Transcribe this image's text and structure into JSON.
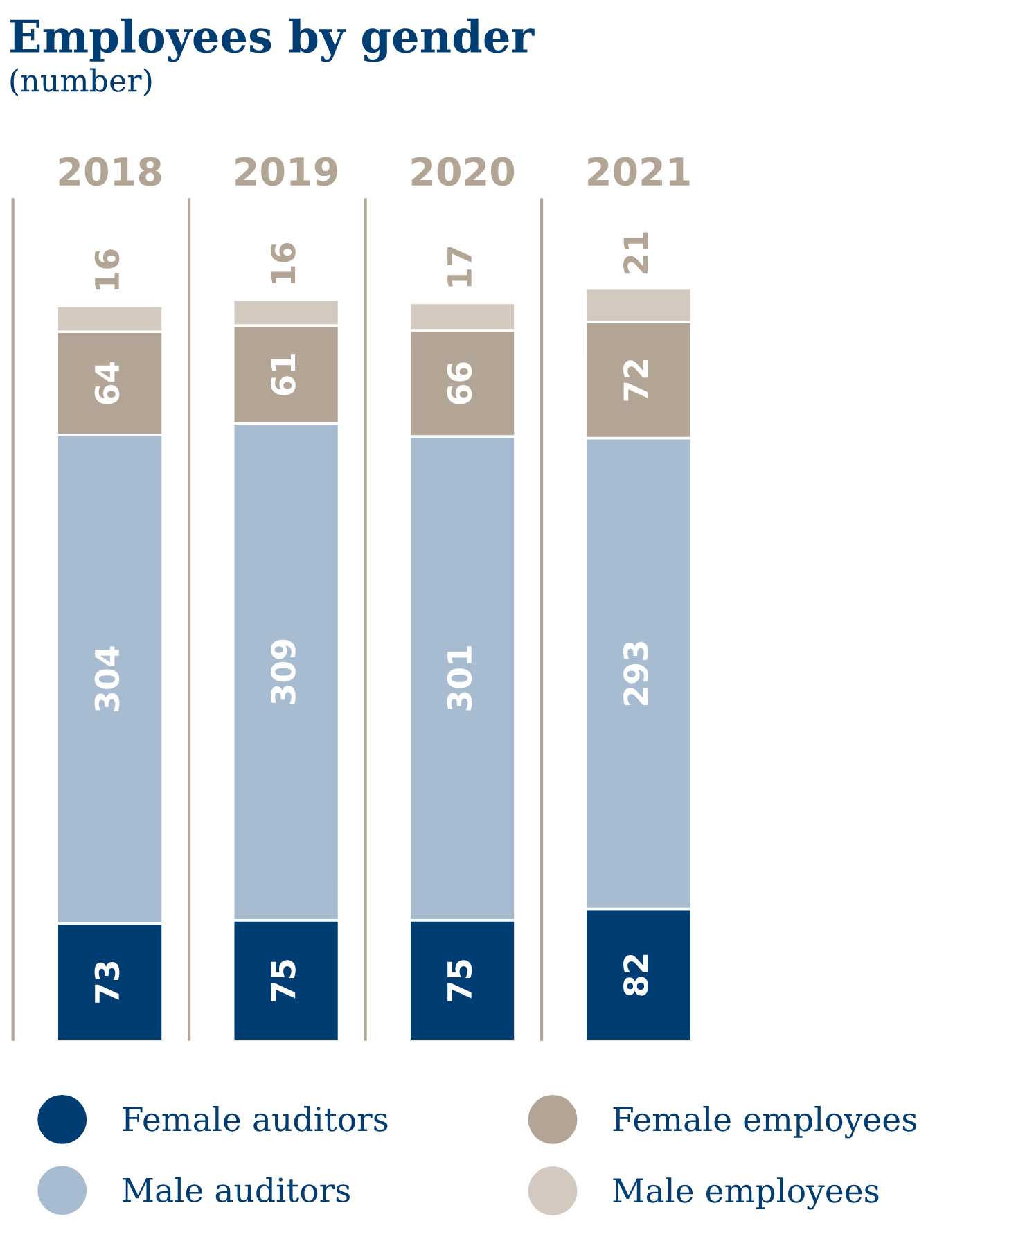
{
  "chart_data": {
    "type": "bar",
    "title": "Employees by gender",
    "subtitle": "(number)",
    "categories": [
      "2018",
      "2019",
      "2020",
      "2021"
    ],
    "stacked": true,
    "data_labels": true,
    "grid": false,
    "legend": "bottom",
    "series": [
      {
        "name": "Female auditors",
        "color": "#003d73",
        "values": [
          73,
          75,
          75,
          82
        ]
      },
      {
        "name": "Male auditors",
        "color": "#a7bcd1",
        "values": [
          304,
          309,
          301,
          293
        ]
      },
      {
        "name": "Female employees",
        "color": "#b3a596",
        "values": [
          64,
          61,
          66,
          72
        ]
      },
      {
        "name": "Male employees",
        "color": "#d3c9bf",
        "values": [
          16,
          16,
          17,
          21
        ]
      }
    ]
  }
}
